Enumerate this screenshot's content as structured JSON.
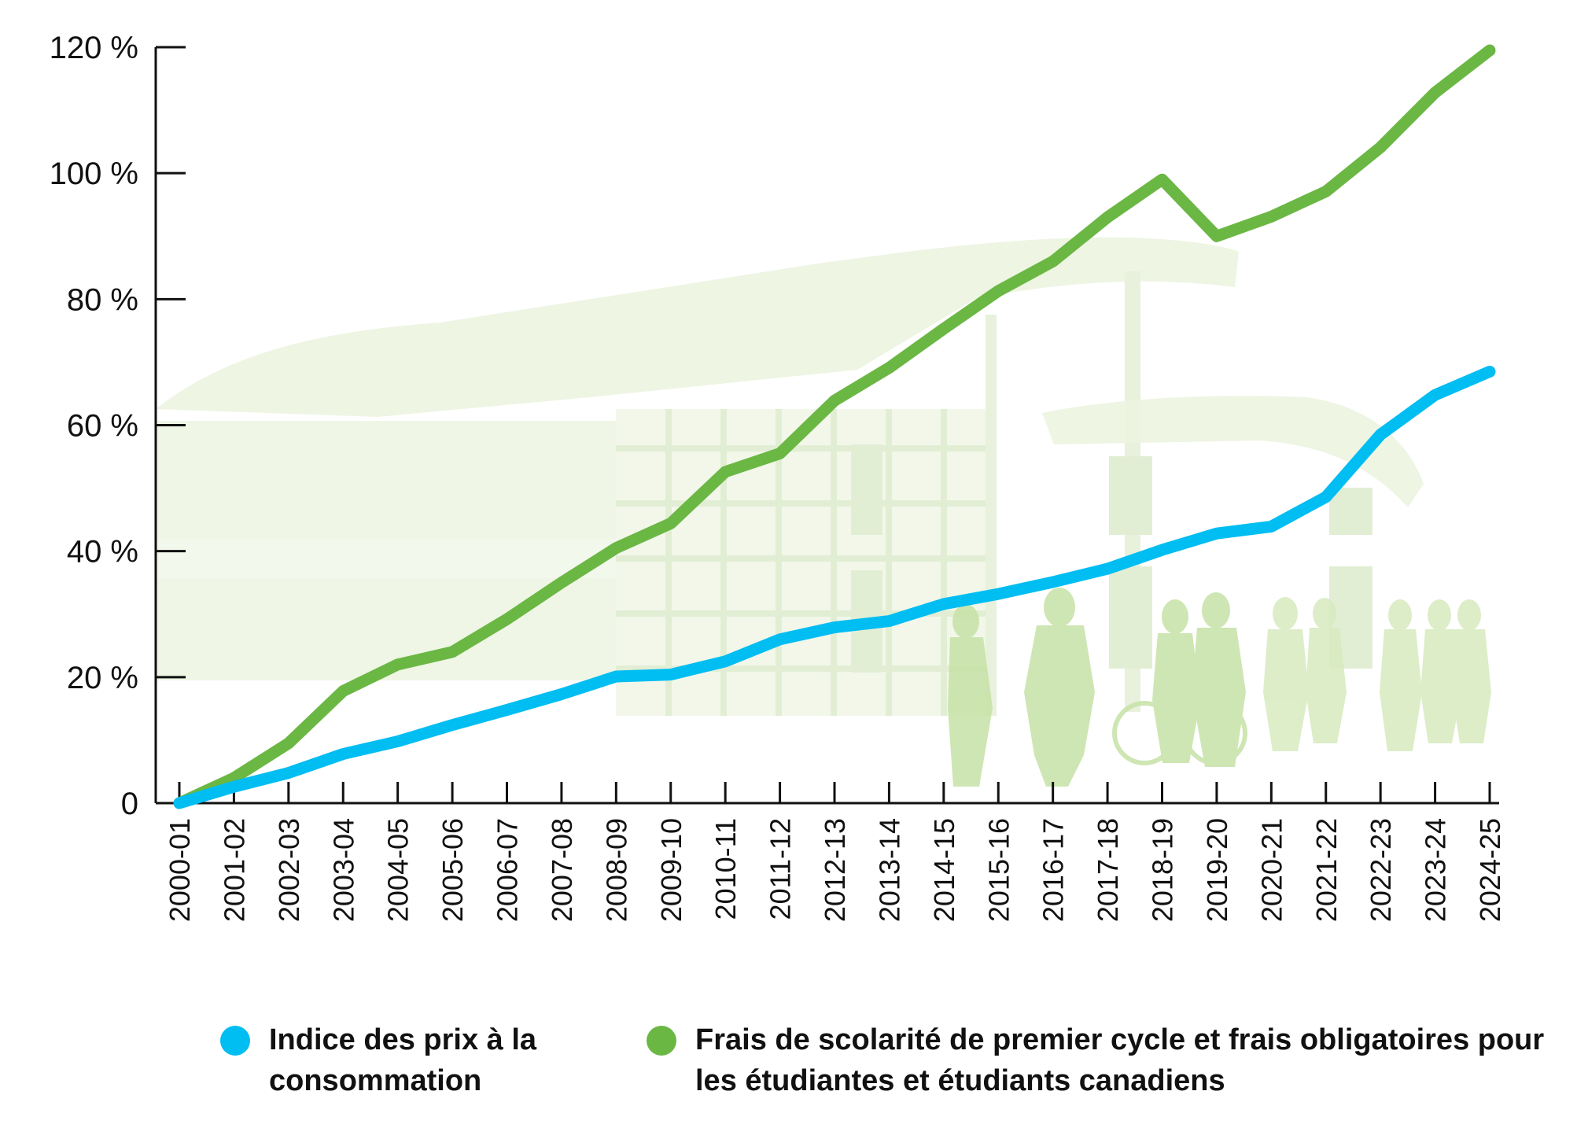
{
  "chart_data": {
    "type": "line",
    "categories": [
      "2000-01",
      "2001-02",
      "2002-03",
      "2003-04",
      "2004-05",
      "2005-06",
      "2006-07",
      "2007-08",
      "2008-09",
      "2009-10",
      "2010-11",
      "2011-12",
      "2012-13",
      "2013-14",
      "2014-15",
      "2015-16",
      "2016-17",
      "2017-18",
      "2018-19",
      "2019-20",
      "2020-21",
      "2021-22",
      "2022-23",
      "2023-24",
      "2024-25"
    ],
    "y_ticks": [
      "0",
      "20 %",
      "40 %",
      "60 %",
      "80 %",
      "100 %",
      "120 %"
    ],
    "y_tick_values": [
      0,
      20,
      40,
      60,
      80,
      100,
      120
    ],
    "ylim": [
      0,
      120
    ],
    "title": "",
    "xlabel": "",
    "ylabel": "",
    "legend_position": "bottom",
    "series": [
      {
        "name": "Indice des prix à la consommation",
        "color": "#00bdf2",
        "values": [
          0,
          2.6,
          4.8,
          7.8,
          9.8,
          12.4,
          14.8,
          17.3,
          20.1,
          20.4,
          22.5,
          26,
          27.9,
          28.9,
          31.6,
          33.2,
          35.1,
          37.2,
          40.2,
          42.8,
          43.9,
          48.6,
          58.5,
          64.8,
          68.5
        ]
      },
      {
        "name": "Frais de scolarité de premier cycle et frais obligatoires pour les étudiantes et étudiants canadiens",
        "color": "#6bb744",
        "values": [
          0,
          4,
          9.5,
          17.8,
          22,
          24,
          29.2,
          35,
          40.5,
          44.4,
          52.6,
          55.5,
          63.9,
          69.1,
          75.3,
          81.3,
          86,
          93,
          99,
          90,
          93.1,
          97.1,
          104.1,
          112.8,
          119.5
        ]
      }
    ]
  },
  "background": {
    "illustration": "campus-building-with-students"
  }
}
